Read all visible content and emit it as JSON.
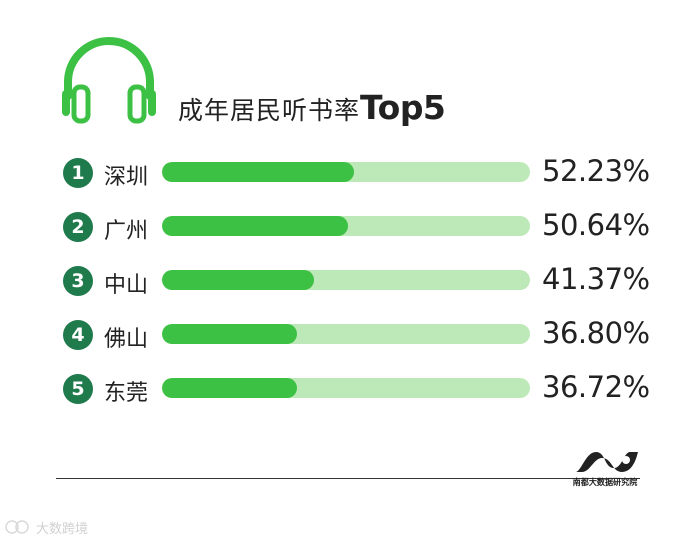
{
  "header": {
    "title_cn": "成年居民听书率",
    "title_en": "Top5"
  },
  "colors": {
    "accent": "#3cc144",
    "track": "#bce9b7",
    "rank_badge": "#1f7a4c"
  },
  "chart_data": {
    "type": "bar",
    "title": "成年居民听书率Top5",
    "categories": [
      "深圳",
      "广州",
      "中山",
      "佛山",
      "东莞"
    ],
    "ranks": [
      "1",
      "2",
      "3",
      "4",
      "5"
    ],
    "values": [
      52.23,
      50.64,
      41.37,
      36.8,
      36.72
    ],
    "labels": [
      "52.23%",
      "50.64%",
      "41.37%",
      "36.80%",
      "36.72%"
    ],
    "orientation": "horizontal",
    "unit": "%",
    "xlim": [
      0,
      100
    ],
    "grid": false,
    "legend": "none"
  },
  "footer": {
    "logo_text": "南都大数据研究院",
    "watermark": "大数跨境"
  }
}
